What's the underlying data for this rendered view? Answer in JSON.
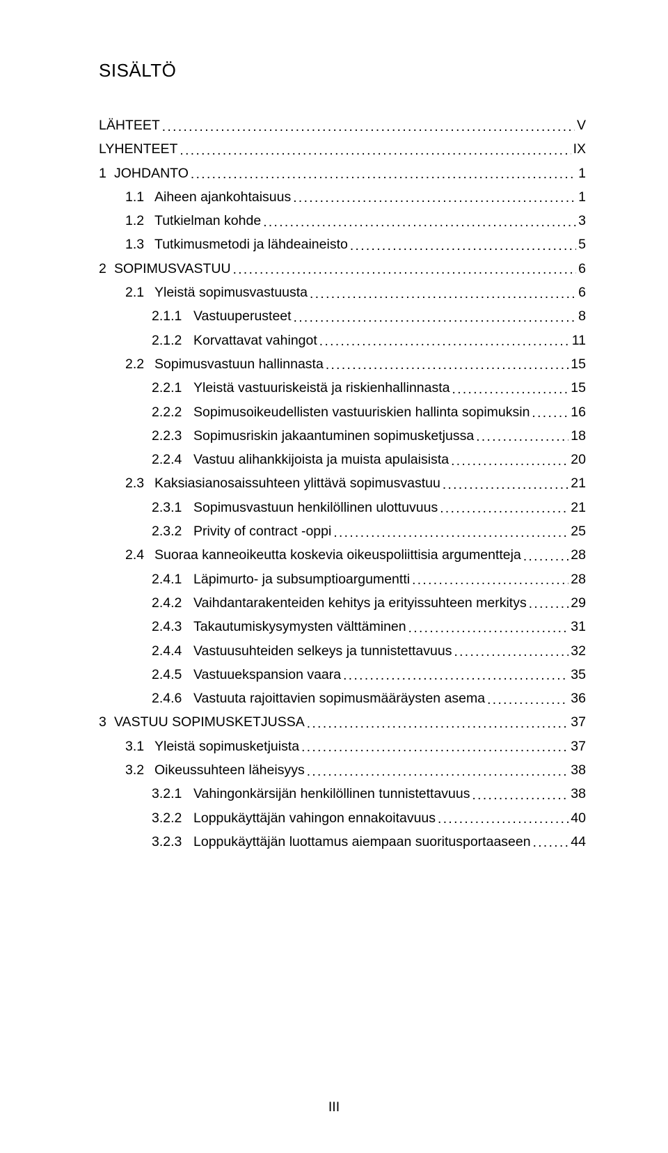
{
  "title": "SISÄLTÖ",
  "footer": "III",
  "font": {
    "family": "Arial",
    "title_size_pt": 20,
    "body_size_pt": 15
  },
  "colors": {
    "text": "#000000",
    "background": "#ffffff"
  },
  "toc": [
    {
      "level": 0,
      "num": "",
      "label": "LÄHTEET",
      "page": "V"
    },
    {
      "level": 0,
      "num": "",
      "label": "LYHENTEET",
      "page": "IX"
    },
    {
      "level": 1,
      "num": "1",
      "label": "JOHDANTO",
      "page": "1"
    },
    {
      "level": 2,
      "num": "1.1",
      "label": "Aiheen ajankohtaisuus",
      "page": "1"
    },
    {
      "level": 2,
      "num": "1.2",
      "label": "Tutkielman kohde",
      "page": "3"
    },
    {
      "level": 2,
      "num": "1.3",
      "label": "Tutkimusmetodi ja lähdeaineisto",
      "page": "5"
    },
    {
      "level": 1,
      "num": "2",
      "label": "SOPIMUSVASTUU",
      "page": "6"
    },
    {
      "level": 2,
      "num": "2.1",
      "label": "Yleistä sopimusvastuusta",
      "page": "6"
    },
    {
      "level": 3,
      "num": "2.1.1",
      "label": "Vastuuperusteet",
      "page": "8"
    },
    {
      "level": 3,
      "num": "2.1.2",
      "label": "Korvattavat vahingot",
      "page": "11"
    },
    {
      "level": 2,
      "num": "2.2",
      "label": "Sopimusvastuun hallinnasta",
      "page": "15"
    },
    {
      "level": 3,
      "num": "2.2.1",
      "label": "Yleistä vastuuriskeistä ja riskienhallinnasta",
      "page": "15"
    },
    {
      "level": 3,
      "num": "2.2.2",
      "label": "Sopimusoikeudellisten vastuuriskien hallinta sopimuksin",
      "page": "16"
    },
    {
      "level": 3,
      "num": "2.2.3",
      "label": "Sopimusriskin jakaantuminen sopimusketjussa",
      "page": "18"
    },
    {
      "level": 3,
      "num": "2.2.4",
      "label": "Vastuu alihankkijoista ja muista apulaisista",
      "page": "20"
    },
    {
      "level": 2,
      "num": "2.3",
      "label": "Kaksiasianosaissuhteen ylittävä sopimusvastuu",
      "page": "21"
    },
    {
      "level": 3,
      "num": "2.3.1",
      "label": "Sopimusvastuun henkilöllinen ulottuvuus",
      "page": "21"
    },
    {
      "level": 3,
      "num": "2.3.2",
      "label": "Privity of contract -oppi",
      "page": "25"
    },
    {
      "level": 2,
      "num": "2.4",
      "label": "Suoraa kanneoikeutta koskevia oikeuspoliittisia argumentteja",
      "page": "28"
    },
    {
      "level": 3,
      "num": "2.4.1",
      "label": "Läpimurto- ja subsumptioargumentti",
      "page": "28"
    },
    {
      "level": 3,
      "num": "2.4.2",
      "label": "Vaihdantarakenteiden kehitys ja erityissuhteen merkitys",
      "page": "29"
    },
    {
      "level": 3,
      "num": "2.4.3",
      "label": "Takautumiskysymysten välttäminen",
      "page": "31"
    },
    {
      "level": 3,
      "num": "2.4.4",
      "label": "Vastuusuhteiden selkeys ja tunnistettavuus",
      "page": "32"
    },
    {
      "level": 3,
      "num": "2.4.5",
      "label": "Vastuuekspansion vaara",
      "page": "35"
    },
    {
      "level": 3,
      "num": "2.4.6",
      "label": "Vastuuta rajoittavien sopimusmääräysten asema",
      "page": "36"
    },
    {
      "level": 1,
      "num": "3",
      "label": "VASTUU SOPIMUSKETJUSSA",
      "page": "37"
    },
    {
      "level": 2,
      "num": "3.1",
      "label": "Yleistä sopimusketjuista",
      "page": "37"
    },
    {
      "level": 2,
      "num": "3.2",
      "label": "Oikeussuhteen läheisyys",
      "page": "38"
    },
    {
      "level": 3,
      "num": "3.2.1",
      "label": "Vahingonkärsijän henkilöllinen tunnistettavuus",
      "page": "38"
    },
    {
      "level": 3,
      "num": "3.2.2",
      "label": "Loppukäyttäjän vahingon ennakoitavuus",
      "page": "40"
    },
    {
      "level": 3,
      "num": "3.2.3",
      "label": "Loppukäyttäjän luottamus aiempaan suoritusportaaseen",
      "page": "44"
    }
  ]
}
